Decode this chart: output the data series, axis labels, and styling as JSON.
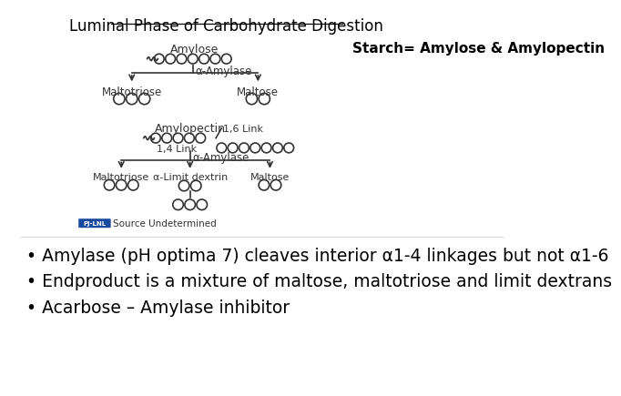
{
  "title": "Luminal Phase of Carbohydrate Digestion",
  "starch_note": "Starch= Amylose & Amylopectin",
  "source_note": "Source Undetermined",
  "bullet1": "• Amylase (pH optima 7) cleaves interior α1-4 linkages but not α1-6",
  "bullet2": "• Endproduct is a mixture of maltose, maltotriose and limit dextrans",
  "bullet3": "• Acarbose – Amylase inhibitor",
  "bg_color": "#ffffff",
  "text_color": "#000000",
  "title_color": "#000000",
  "diagram_color": "#333333",
  "source_badge_color": "#1a4a9e",
  "bullet_fontsize": 13.5,
  "title_fontsize": 12
}
